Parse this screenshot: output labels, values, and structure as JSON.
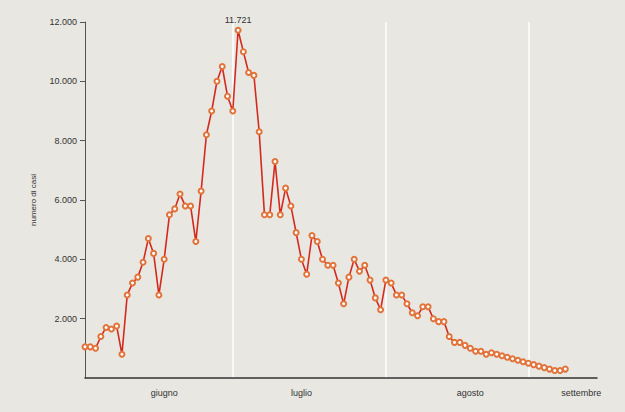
{
  "chart_data": {
    "type": "line",
    "y_label": "numero di casi",
    "color": "#d42a1e",
    "marker": "circle",
    "grid": false,
    "ylim": [
      0,
      12000
    ],
    "yticks": [
      {
        "value": 2000,
        "label": "2.000"
      },
      {
        "value": 4000,
        "label": "4.000"
      },
      {
        "value": 6000,
        "label": "6.000"
      },
      {
        "value": 8000,
        "label": "8.000"
      },
      {
        "value": 10000,
        "label": "10.000"
      },
      {
        "value": 12000,
        "label": "12.000"
      }
    ],
    "categories": [
      null,
      null,
      null,
      null,
      null,
      null,
      null,
      null,
      null,
      null,
      null,
      null,
      null,
      null,
      null,
      "giugno",
      null,
      null,
      null,
      null,
      null,
      null,
      null,
      null,
      null,
      null,
      null,
      null,
      null,
      null,
      null,
      null,
      null,
      null,
      null,
      null,
      null,
      null,
      null,
      null,
      null,
      "luglio",
      null,
      null,
      null,
      null,
      null,
      null,
      null,
      null,
      null,
      null,
      null,
      null,
      null,
      null,
      null,
      null,
      null,
      null,
      null,
      null,
      null,
      null,
      null,
      null,
      null,
      null,
      null,
      null,
      null,
      null,
      null,
      "agosto",
      null,
      null,
      null,
      null,
      null,
      null,
      null,
      null,
      null,
      null,
      null,
      null,
      null,
      null,
      null,
      null,
      null,
      null,
      null,
      null,
      "settembre",
      null,
      null,
      null
    ],
    "values": [
      1050,
      1050,
      1000,
      1400,
      1700,
      1650,
      1750,
      800,
      2800,
      3200,
      3400,
      3900,
      4700,
      4200,
      2800,
      4000,
      5500,
      5700,
      6200,
      5800,
      5800,
      4600,
      6300,
      8200,
      9000,
      10000,
      10500,
      9500,
      9000,
      11721,
      11000,
      10300,
      10200,
      8300,
      5500,
      5500,
      7300,
      5500,
      6400,
      5800,
      4900,
      4000,
      3500,
      4800,
      4600,
      4000,
      3800,
      3800,
      3200,
      2500,
      3400,
      4000,
      3600,
      3800,
      3300,
      2700,
      2300,
      3300,
      3200,
      2800,
      2800,
      2500,
      2200,
      2100,
      2400,
      2400,
      2000,
      1900,
      1900,
      1400,
      1200,
      1200,
      1100,
      1000,
      900,
      900,
      800,
      850,
      800,
      750,
      700,
      650,
      600,
      550,
      500,
      450,
      400,
      350,
      300,
      250,
      250,
      300,
      null,
      null,
      null,
      null,
      null,
      null
    ],
    "annotations": [
      {
        "text": "11.721",
        "index": 29,
        "value": 11721
      }
    ]
  }
}
